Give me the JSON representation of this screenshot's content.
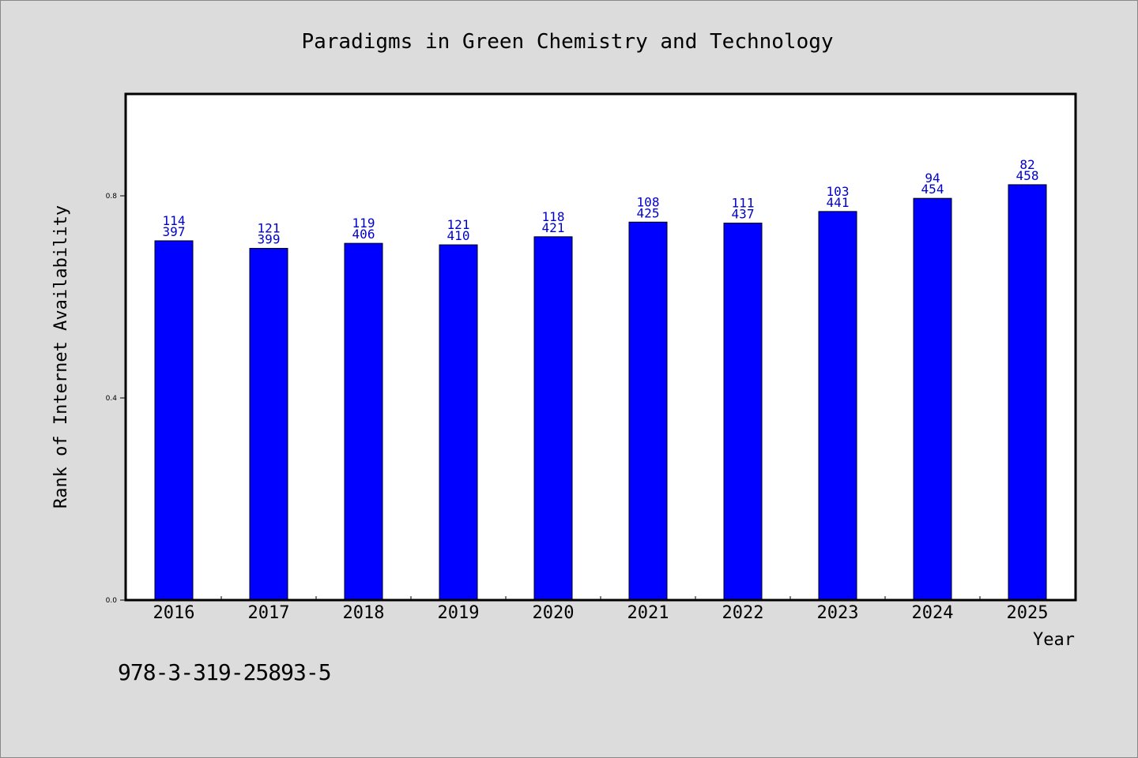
{
  "chart_data": {
    "type": "bar",
    "title": "Paradigms in Green Chemistry and Technology",
    "xlabel": "Year",
    "ylabel": "Rank of Internet Availability",
    "categories": [
      "2016",
      "2017",
      "2018",
      "2019",
      "2020",
      "2021",
      "2022",
      "2023",
      "2024",
      "2025"
    ],
    "values": [
      0.711,
      0.696,
      0.706,
      0.703,
      0.719,
      0.748,
      0.746,
      0.769,
      0.795,
      0.822
    ],
    "labels_top": [
      "114",
      "121",
      "119",
      "121",
      "118",
      "108",
      "111",
      "103",
      "94",
      "82"
    ],
    "labels_bottom": [
      "397",
      "399",
      "406",
      "410",
      "421",
      "425",
      "437",
      "441",
      "454",
      "458"
    ],
    "ylim": [
      0,
      1.0
    ],
    "yticks": [
      "0.0",
      "0.4",
      "0.8"
    ],
    "grid": false,
    "bar_color": "#0000ff",
    "label_color": "#0000cc"
  },
  "footer": {
    "isbn": "978-3-319-25893-5"
  }
}
